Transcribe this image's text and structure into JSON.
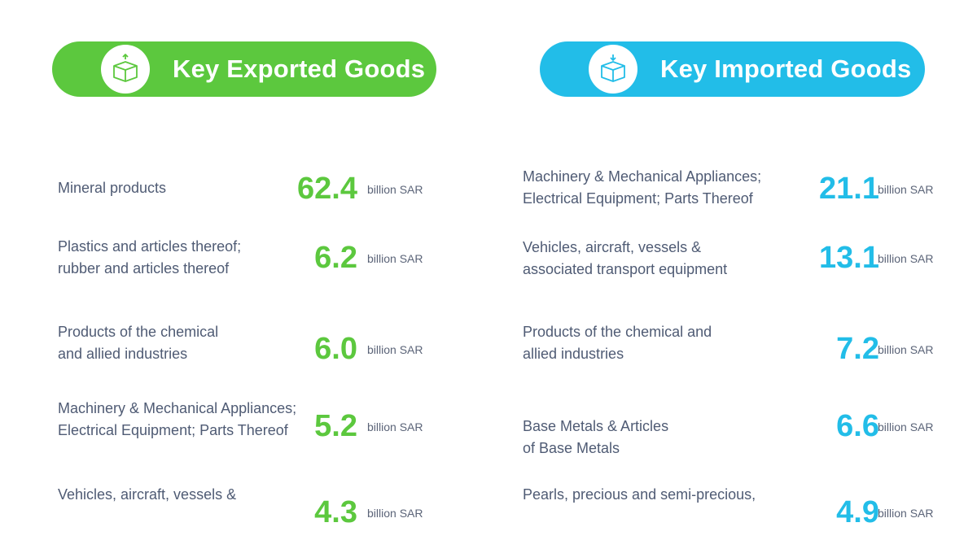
{
  "exports": {
    "title": "Key Exported Goods",
    "icon": "box-up-icon",
    "color": "#5cc83e",
    "items": [
      {
        "label": "Mineral products",
        "value": "62.4",
        "unit": "billion SAR"
      },
      {
        "label": "Plastics and articles thereof;\nrubber and articles thereof",
        "value": "6.2",
        "unit": "billion SAR"
      },
      {
        "label": "Products of the chemical\nand allied industries",
        "value": "6.0",
        "unit": "billion SAR"
      },
      {
        "label": "Machinery & Mechanical Appliances;\nElectrical Equipment; Parts Thereof",
        "value": "5.2",
        "unit": "billion SAR"
      },
      {
        "label": "Vehicles, aircraft, vessels &",
        "value": "4.3",
        "unit": "billion SAR"
      }
    ]
  },
  "imports": {
    "title": "Key Imported Goods",
    "icon": "box-down-icon",
    "color": "#22bde8",
    "items": [
      {
        "label": "Machinery & Mechanical Appliances;\nElectrical Equipment; Parts Thereof",
        "value": "21.1",
        "unit": "billion SAR"
      },
      {
        "label": "Vehicles, aircraft, vessels &\nassociated transport equipment",
        "value": "13.1",
        "unit": "billion SAR"
      },
      {
        "label": "Products of the chemical and\nallied industries",
        "value": "7.2",
        "unit": "billion SAR"
      },
      {
        "label": "Base Metals & Articles\nof Base Metals",
        "value": "6.6",
        "unit": "billion SAR"
      },
      {
        "label": "Pearls, precious and semi-precious,",
        "value": "4.9",
        "unit": "billion SAR"
      }
    ]
  }
}
